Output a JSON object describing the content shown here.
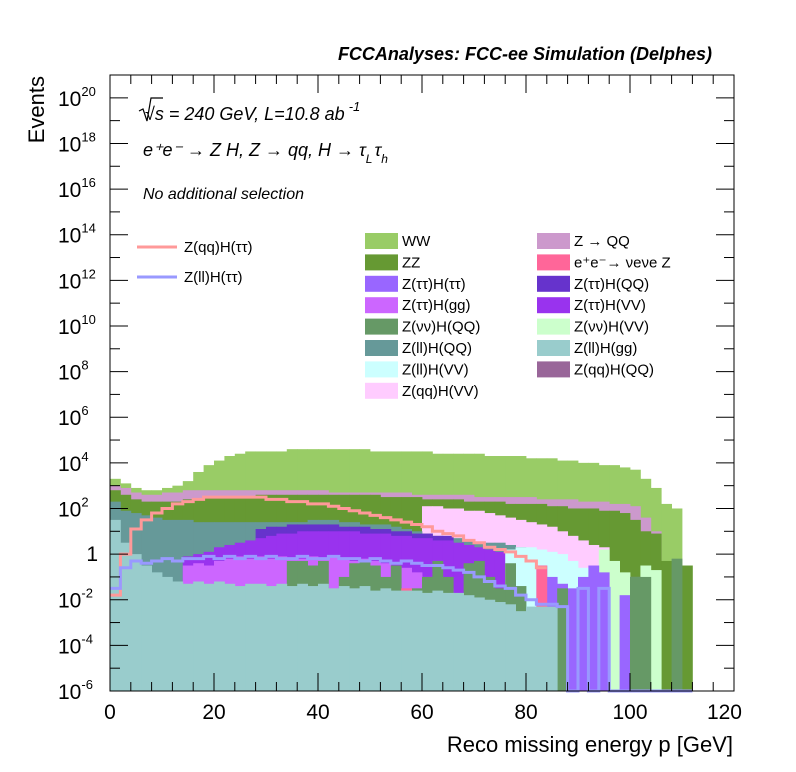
{
  "chart_data": {
    "type": "histogram",
    "stacked": true,
    "log_y": true,
    "header": "FCCAnalyses: FCC-ee Simulation (Delphes)",
    "xlabel": "Reco missing energy p [GeV]",
    "ylabel": "Events",
    "xlim": [
      0,
      120
    ],
    "ylim_exp": [
      -6,
      21
    ],
    "x_ticks": [
      "0",
      "20",
      "40",
      "60",
      "80",
      "100",
      "120"
    ],
    "y_tick_exps": [
      -6,
      -4,
      -2,
      0,
      2,
      4,
      6,
      8,
      10,
      12,
      14,
      16,
      18,
      20
    ],
    "y_tick_special": {
      "0": "1"
    },
    "bins": {
      "start": 0,
      "width": 2,
      "count": 56
    },
    "annotations": {
      "energy_prefix": "√s = 240 GeV, L=10.8 ab",
      "energy_exp": "-1",
      "process": "e⁺e⁻ → Z H, Z → qq, H → τ_L τ_h",
      "selection": "No additional selection"
    },
    "signals": [
      {
        "name": "Z(qq)H(ττ)",
        "color": "#ff9999",
        "exps": [
          -1.8,
          0.0,
          1.1,
          1.5,
          1.8,
          2.0,
          2.2,
          2.3,
          2.4,
          2.5,
          2.5,
          2.5,
          2.5,
          2.5,
          2.5,
          2.4,
          2.4,
          2.3,
          2.3,
          2.2,
          2.2,
          2.1,
          2.0,
          1.9,
          1.8,
          1.7,
          1.6,
          1.5,
          1.4,
          1.3,
          1.2,
          1.0,
          0.9,
          0.8,
          0.6,
          0.5,
          0.3,
          0.2,
          0.1,
          -0.1,
          -0.3,
          -0.6,
          null,
          null,
          null,
          null,
          null,
          null,
          null,
          null,
          null,
          null,
          null,
          null,
          null,
          null
        ]
      },
      {
        "name": "Z(ll)H(ττ)",
        "color": "#9999ff",
        "exps": [
          -1.5,
          -0.6,
          -0.3,
          -0.4,
          -0.3,
          -0.2,
          -0.3,
          -0.2,
          -0.2,
          -0.1,
          -0.2,
          -0.1,
          -0.2,
          -0.1,
          -0.2,
          -0.1,
          -0.2,
          -0.2,
          -0.1,
          -0.2,
          -0.2,
          -0.1,
          -0.2,
          -0.2,
          -0.3,
          -0.2,
          -0.3,
          -0.4,
          -0.3,
          -0.4,
          -0.5,
          -0.5,
          -0.6,
          -0.7,
          -0.8,
          -1.0,
          -1.2,
          -1.4,
          -1.5,
          -1.8,
          -2.0,
          -2.2,
          -2.2,
          -2.3,
          -6.0,
          -1.5,
          -6.0,
          -1.5,
          -6.0,
          -6.0,
          -6.0,
          -6.0,
          -6.0,
          -6.0,
          -6.0,
          -6.0
        ]
      }
    ],
    "series": [
      {
        "name": "Z(ll)H(gg)",
        "color": "#99cccc",
        "totals": [
          1.5,
          0.5,
          0.0,
          -0.5,
          -0.8,
          -1.0,
          -1.2,
          -1.3,
          -1.2,
          -1.3,
          -1.2,
          -1.3,
          -1.4,
          -1.3,
          -1.3,
          -1.4,
          -1.3,
          -1.4,
          -1.3,
          -1.4,
          -1.3,
          -1.5,
          -1.4,
          -1.5,
          -1.4,
          -1.6,
          -1.5,
          -1.6,
          -1.6,
          -1.6,
          -1.7,
          -1.6,
          -1.7,
          -1.7,
          -1.8,
          -1.9,
          -2.0,
          -2.1,
          -2.2,
          -2.5,
          -2.3,
          -2.3,
          -2.3,
          null,
          null,
          null,
          null,
          null,
          null,
          null,
          null,
          null,
          null,
          null,
          null,
          null
        ]
      },
      {
        "name": "Z(qq)H(QQ)",
        "color": "#996699",
        "totals": [
          null,
          null,
          null,
          null,
          null,
          -4.5,
          null,
          null,
          null,
          null,
          null,
          null,
          null,
          null,
          null,
          null,
          null,
          null,
          null,
          null,
          null,
          null,
          null,
          null,
          null,
          null,
          null,
          null,
          null,
          null,
          null,
          null,
          null,
          null,
          null,
          null,
          null,
          null,
          null,
          null,
          null,
          null,
          null,
          null,
          null,
          null,
          null,
          null,
          null,
          null,
          null,
          null,
          null,
          null,
          null,
          null
        ]
      },
      {
        "name": "e⁺e⁻→ νeνe Z",
        "color": "#ff6699",
        "totals": [
          null,
          null,
          null,
          null,
          null,
          null,
          null,
          null,
          -1.7,
          null,
          null,
          null,
          null,
          null,
          -1.6,
          null,
          null,
          null,
          null,
          null,
          null,
          null,
          null,
          null,
          null,
          null,
          null,
          null,
          -1.5,
          null,
          null,
          null,
          null,
          null,
          null,
          null,
          null,
          null,
          null,
          null,
          null,
          -0.5,
          null,
          null,
          null,
          null,
          null,
          null,
          null,
          null,
          null,
          null,
          null,
          null,
          null,
          null
        ]
      },
      {
        "name": "Z(νν)H(QQ)",
        "color": "#669966",
        "totals": [
          null,
          null,
          null,
          null,
          null,
          null,
          null,
          null,
          null,
          null,
          null,
          null,
          null,
          null,
          null,
          null,
          null,
          -0.3,
          -0.3,
          -0.5,
          -0.3,
          null,
          -1.0,
          -0.4,
          -0.3,
          -0.5,
          -1.0,
          -0.5,
          null,
          -1.5,
          -1.0,
          -0.3,
          -1.0,
          null,
          -0.4,
          -0.3,
          -1.0,
          -1.5,
          -0.4,
          -1.4,
          null,
          null,
          null,
          -1.5,
          null,
          null,
          null,
          null,
          null,
          null,
          -1.0,
          -1.0,
          null,
          null,
          -0.2,
          null
        ]
      },
      {
        "name": "Z(ττ)H(gg)",
        "color": "#cc66ff",
        "totals": [
          null,
          null,
          null,
          null,
          null,
          null,
          null,
          -0.5,
          -0.4,
          -0.5,
          -0.3,
          -0.2,
          -0.1,
          -0.2,
          -0.1,
          -0.2,
          -0.1,
          -0.2,
          -0.2,
          -0.1,
          -0.2,
          -0.1,
          -0.2,
          -0.3,
          -0.2,
          -0.3,
          -0.4,
          -0.5,
          -0.6,
          -0.8,
          -1.0,
          -1.2,
          -1.5,
          null,
          null,
          null,
          null,
          null,
          null,
          null,
          null,
          null,
          null,
          null,
          null,
          null,
          null,
          null,
          null,
          null,
          null,
          null,
          null,
          null,
          null,
          null
        ]
      },
      {
        "name": "Z(ττ)H(ττ)",
        "color": "#9966ff",
        "totals": [
          null,
          null,
          null,
          null,
          null,
          null,
          null,
          null,
          null,
          null,
          null,
          null,
          null,
          null,
          null,
          null,
          null,
          null,
          null,
          null,
          null,
          null,
          null,
          null,
          null,
          null,
          null,
          null,
          null,
          null,
          null,
          null,
          null,
          null,
          null,
          null,
          null,
          null,
          null,
          null,
          null,
          -0.5,
          -1.0,
          -1.3,
          -1.5,
          -1.0,
          -0.5,
          -0.8,
          null,
          -1.8,
          -1.0,
          null,
          null,
          null,
          null,
          null
        ]
      },
      {
        "name": "Z(ll)H(VV)",
        "color": "#ccffff",
        "totals": [
          null,
          null,
          null,
          null,
          null,
          null,
          null,
          null,
          null,
          null,
          null,
          null,
          null,
          null,
          null,
          null,
          null,
          null,
          null,
          null,
          null,
          null,
          null,
          null,
          null,
          null,
          null,
          null,
          null,
          null,
          null,
          null,
          null,
          null,
          null,
          null,
          null,
          null,
          0.2,
          0.3,
          0.3,
          0.2,
          0.1,
          0.0,
          -0.3,
          -0.6,
          -0.8,
          null,
          null,
          null,
          null,
          null,
          null,
          null,
          null,
          null
        ]
      },
      {
        "name": "Z(νν)H(VV)",
        "color": "#ccffcc",
        "totals": [
          null,
          null,
          null,
          null,
          null,
          null,
          null,
          null,
          null,
          null,
          null,
          null,
          null,
          null,
          null,
          null,
          null,
          null,
          null,
          null,
          null,
          null,
          null,
          null,
          null,
          null,
          null,
          null,
          null,
          null,
          null,
          null,
          null,
          null,
          null,
          null,
          null,
          null,
          null,
          null,
          null,
          null,
          null,
          null,
          null,
          null,
          null,
          0.2,
          -0.3,
          -0.8,
          -1.2,
          -0.5,
          -0.7,
          null,
          null,
          null
        ]
      },
      {
        "name": "Z(ττ)H(VV)",
        "color": "#9933ee",
        "totals": [
          null,
          null,
          null,
          null,
          null,
          null,
          null,
          -0.1,
          0.0,
          0.1,
          0.3,
          0.4,
          0.5,
          0.6,
          0.7,
          0.8,
          0.9,
          0.9,
          1.0,
          1.0,
          1.0,
          1.0,
          1.0,
          1.0,
          0.9,
          0.9,
          0.9,
          0.8,
          0.8,
          0.7,
          0.7,
          0.6,
          0.6,
          0.5,
          0.4,
          0.3,
          0.2,
          0.1,
          null,
          null,
          null,
          null,
          null,
          null,
          null,
          null,
          null,
          null,
          null,
          null,
          null,
          null,
          null,
          null,
          null,
          null
        ]
      },
      {
        "name": "Z(ττ)H(QQ)",
        "color": "#6633cc",
        "totals": [
          null,
          null,
          null,
          null,
          null,
          null,
          null,
          null,
          null,
          null,
          null,
          null,
          null,
          null,
          1.1,
          1.2,
          1.2,
          1.3,
          1.3,
          1.3,
          1.3,
          1.3,
          1.2,
          1.2,
          1.2,
          1.1,
          1.1,
          1.0,
          1.0,
          0.9,
          0.9,
          0.8,
          0.8,
          null,
          null,
          null,
          null,
          null,
          null,
          null,
          null,
          null,
          null,
          null,
          null,
          null,
          null,
          null,
          null,
          null,
          null,
          null,
          null,
          null,
          null,
          null
        ]
      },
      {
        "name": "Z(ll)H(QQ)",
        "color": "#669999",
        "totals": [
          2.3,
          1.9,
          1.8,
          1.7,
          1.6,
          1.5,
          1.5,
          1.5,
          1.4,
          1.4,
          1.4,
          1.4,
          1.4,
          1.4,
          1.4,
          1.4,
          1.4,
          1.4,
          1.4,
          1.5,
          1.5,
          1.5,
          1.4,
          1.4,
          1.3,
          1.3,
          1.3,
          1.2,
          1.1,
          1.0,
          0.9,
          0.8,
          0.7,
          0.7,
          0.6,
          0.5,
          0.5,
          0.5,
          0.4,
          0.3,
          0.2,
          null,
          null,
          null,
          null,
          null,
          null,
          null,
          null,
          null,
          null,
          null,
          null,
          null,
          null,
          null
        ]
      },
      {
        "name": "Z(qq)H(VV)",
        "color": "#ffccff",
        "totals": [
          null,
          null,
          null,
          null,
          null,
          null,
          null,
          null,
          null,
          null,
          null,
          null,
          null,
          null,
          null,
          null,
          null,
          null,
          null,
          null,
          null,
          null,
          null,
          null,
          null,
          null,
          null,
          null,
          null,
          null,
          2.1,
          2.1,
          2.0,
          2.0,
          1.9,
          1.9,
          1.8,
          1.7,
          1.6,
          1.5,
          1.4,
          1.3,
          1.2,
          1.0,
          0.8,
          0.6,
          0.4,
          0.3,
          null,
          null,
          null,
          null,
          null,
          null,
          null,
          null
        ]
      },
      {
        "name": "ZZ",
        "color": "#669933",
        "totals": [
          2.8,
          2.6,
          2.4,
          2.3,
          2.3,
          2.3,
          2.3,
          2.4,
          2.4,
          2.5,
          2.5,
          2.5,
          2.5,
          2.5,
          2.6,
          2.6,
          2.6,
          2.6,
          2.6,
          2.6,
          2.6,
          2.6,
          2.6,
          2.6,
          2.6,
          2.6,
          2.5,
          2.5,
          2.5,
          2.5,
          2.4,
          2.4,
          2.4,
          2.4,
          2.3,
          2.3,
          2.3,
          2.3,
          2.2,
          2.2,
          2.2,
          2.2,
          2.1,
          2.1,
          2.0,
          2.0,
          2.0,
          1.9,
          1.9,
          1.8,
          1.5,
          1.0,
          0.9,
          -0.3,
          -0.6,
          -0.5
        ]
      },
      {
        "name": "Z → QQ",
        "color": "#cc99cc",
        "totals": [
          3.0,
          2.9,
          2.7,
          2.6,
          2.6,
          2.7,
          2.7,
          2.8,
          2.8,
          2.8,
          2.8,
          2.8,
          2.8,
          2.8,
          2.8,
          2.8,
          2.8,
          2.8,
          2.8,
          2.8,
          2.8,
          2.7,
          2.7,
          2.7,
          2.7,
          2.7,
          2.7,
          2.7,
          2.7,
          2.6,
          2.6,
          2.6,
          2.6,
          2.6,
          2.6,
          2.5,
          2.5,
          2.5,
          2.5,
          2.5,
          2.5,
          2.4,
          2.4,
          2.4,
          2.4,
          2.3,
          2.3,
          2.3,
          2.2,
          2.2,
          2.1,
          1.6,
          1.0,
          null,
          null,
          null
        ]
      },
      {
        "name": "WW",
        "color": "#99cc66",
        "totals": [
          3.3,
          3.1,
          2.9,
          2.8,
          2.8,
          2.9,
          3.0,
          3.2,
          3.6,
          3.9,
          4.1,
          4.3,
          4.4,
          4.5,
          4.5,
          4.5,
          4.5,
          4.6,
          4.6,
          4.6,
          4.6,
          4.6,
          4.6,
          4.6,
          4.6,
          4.5,
          4.5,
          4.5,
          4.5,
          4.5,
          4.5,
          4.4,
          4.4,
          4.4,
          4.4,
          4.4,
          4.3,
          4.3,
          4.3,
          4.3,
          4.2,
          4.2,
          4.2,
          4.1,
          4.1,
          4.0,
          4.0,
          3.9,
          3.9,
          3.8,
          3.7,
          3.3,
          2.9,
          2.2,
          2.0,
          null
        ]
      }
    ],
    "legend_lines": [
      "Z(qq)H(ττ)",
      "Z(ll)H(ττ)"
    ],
    "legend_mid": [
      "WW",
      "ZZ",
      "Z(ττ)H(ττ)",
      "Z(ττ)H(gg)",
      "Z(νν)H(QQ)",
      "Z(ll)H(QQ)",
      "Z(ll)H(VV)",
      "Z(qq)H(VV)"
    ],
    "legend_right": [
      "Z → QQ",
      "e⁺e⁻→ νeνe Z",
      "Z(ττ)H(QQ)",
      "Z(ττ)H(VV)",
      "Z(νν)H(VV)",
      "Z(ll)H(gg)",
      "Z(qq)H(QQ)"
    ]
  }
}
